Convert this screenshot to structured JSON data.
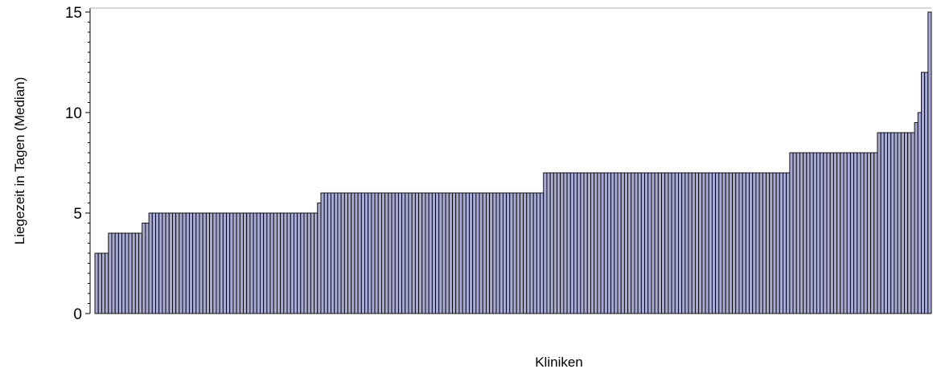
{
  "chart_data": {
    "type": "bar",
    "title": "",
    "xlabel": "Kliniken",
    "ylabel": "Liegezeit in Tagen (Median)",
    "ylim": [
      0,
      15.2
    ],
    "yticks": [
      0,
      5,
      10,
      15
    ],
    "grid": false,
    "legend": "none",
    "bar_color": "#a8aad3",
    "bar_edge_color": "#000000",
    "groups": [
      {
        "value": 3,
        "count": 4
      },
      {
        "value": 4,
        "count": 10
      },
      {
        "value": 4.5,
        "count": 2
      },
      {
        "value": 5,
        "count": 50
      },
      {
        "value": 5.5,
        "count": 1
      },
      {
        "value": 6,
        "count": 66
      },
      {
        "value": 7,
        "count": 73
      },
      {
        "value": 8,
        "count": 26
      },
      {
        "value": 9,
        "count": 11
      },
      {
        "value": 9.5,
        "count": 1
      },
      {
        "value": 10,
        "count": 1
      },
      {
        "value": 12,
        "count": 2
      },
      {
        "value": 15,
        "count": 1
      }
    ]
  }
}
